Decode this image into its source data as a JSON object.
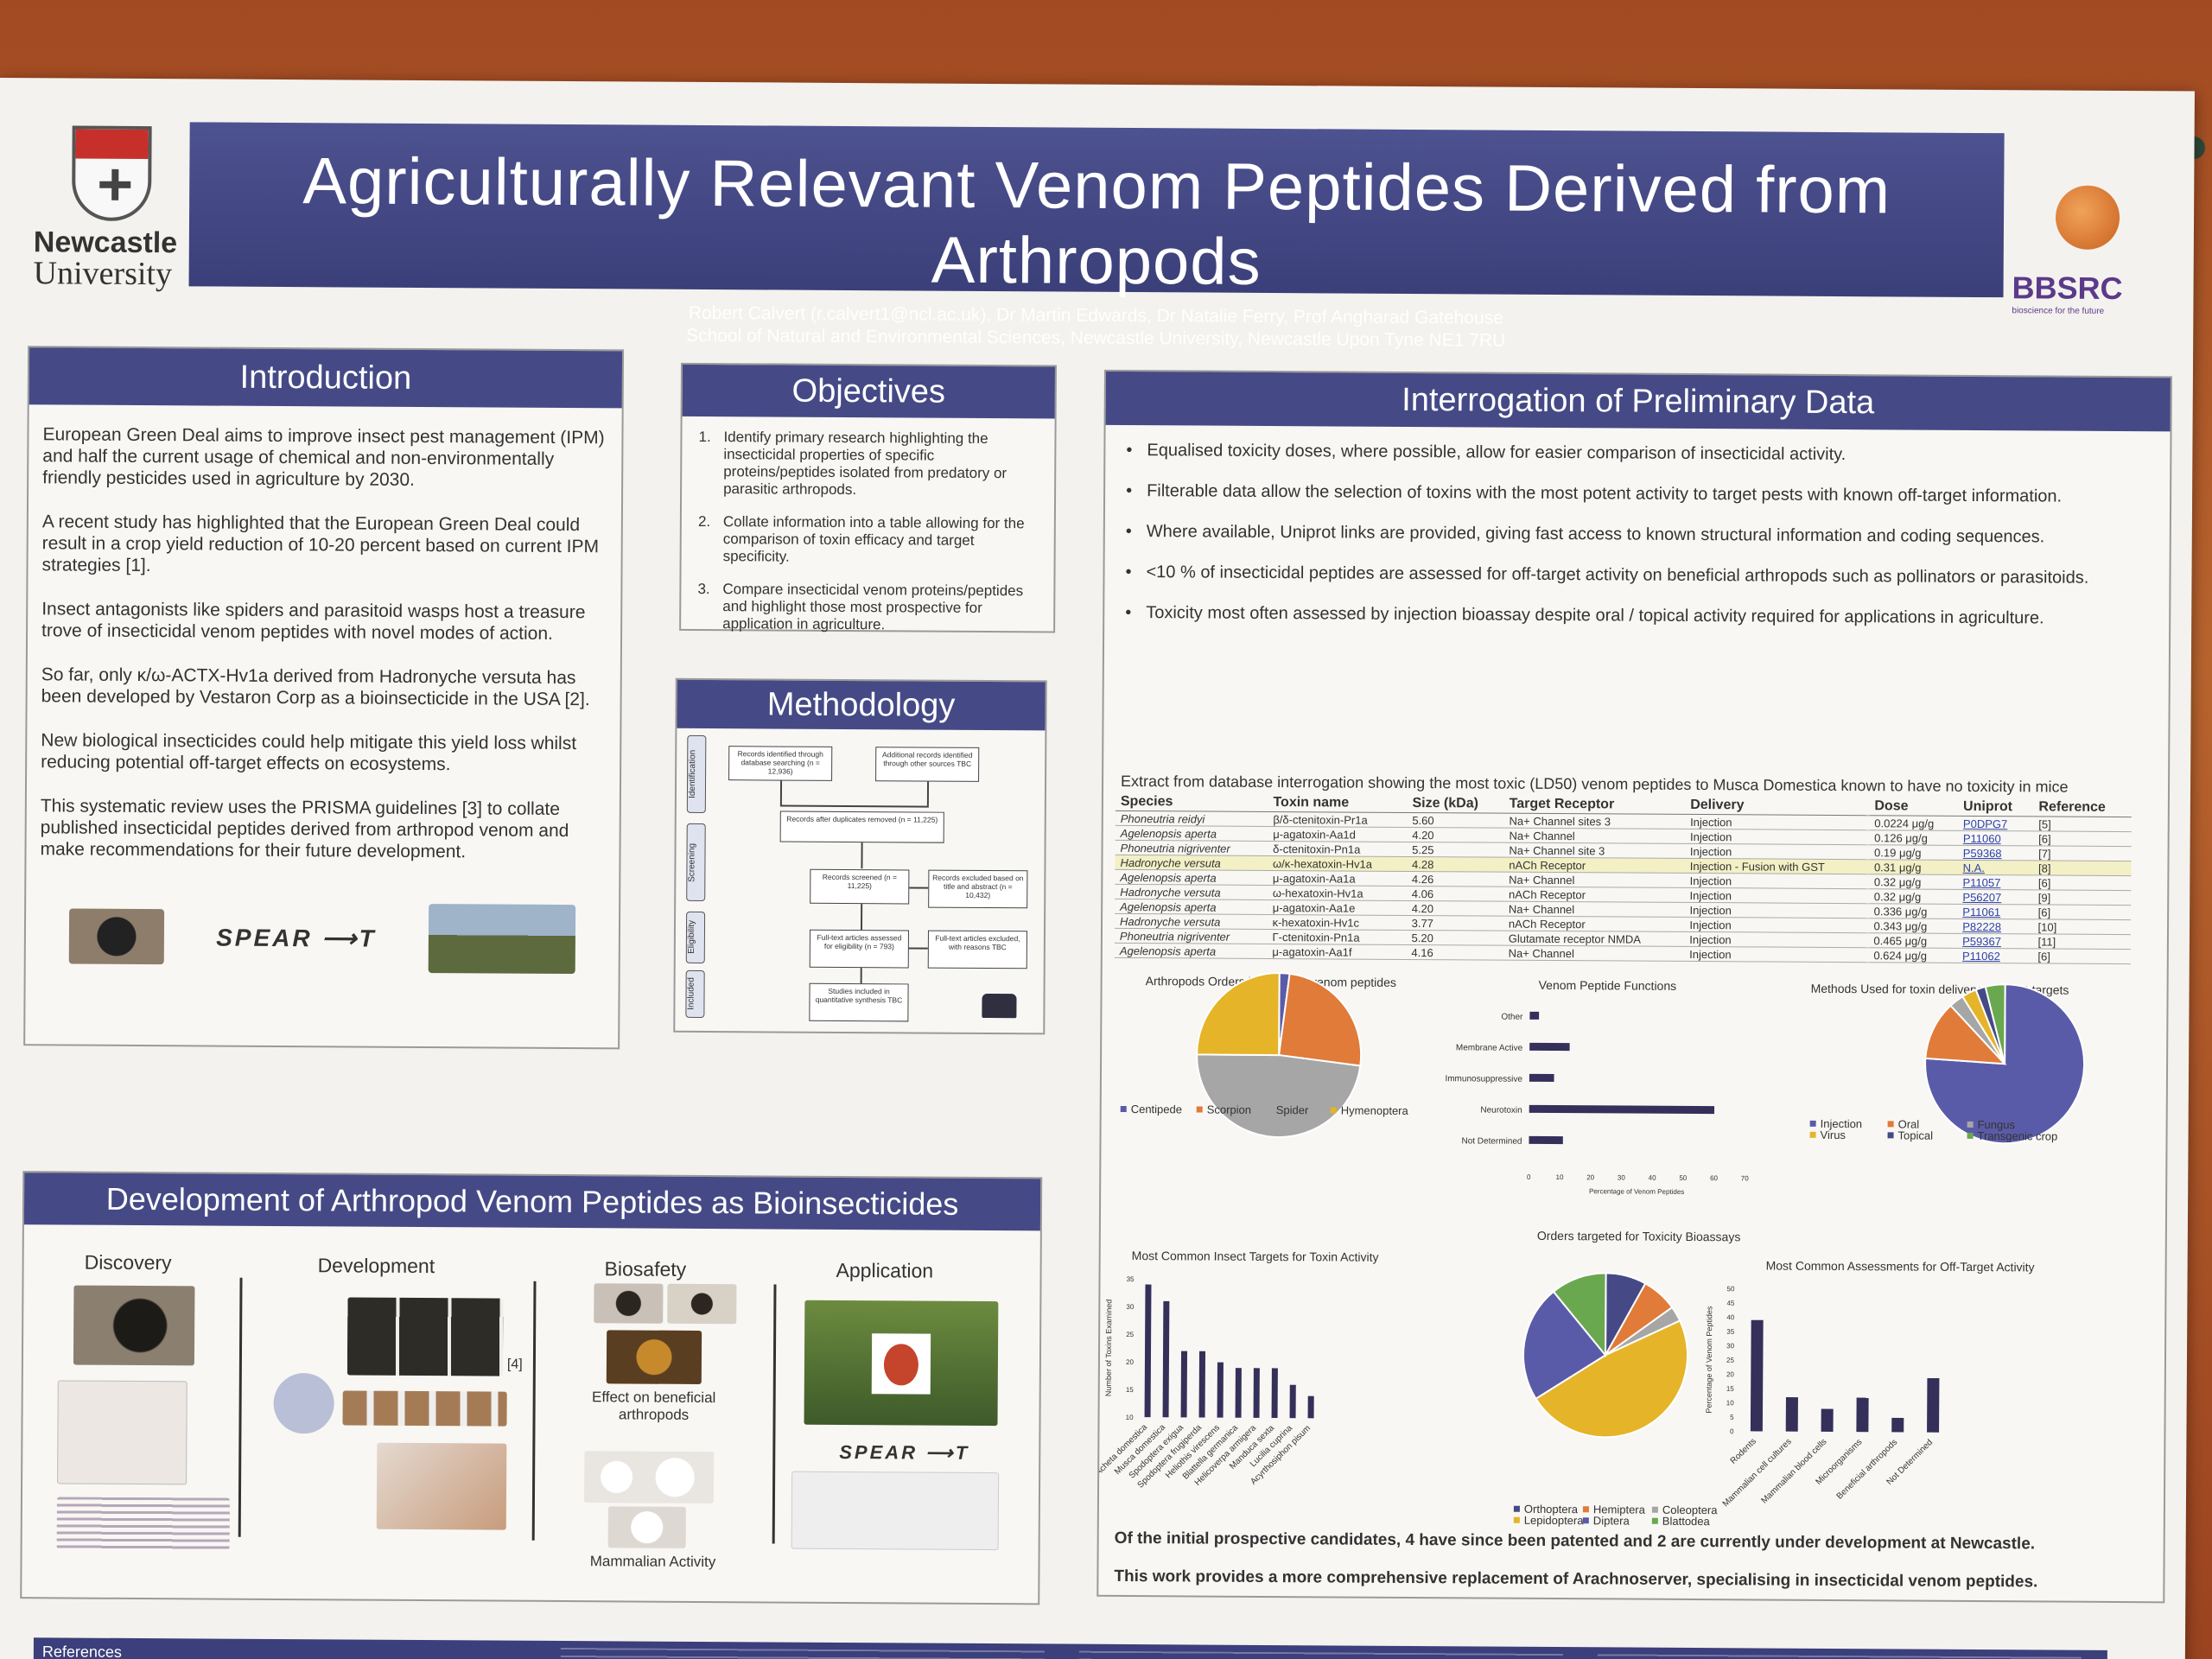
{
  "header": {
    "university_name": "Newcastle",
    "university_sub": "University",
    "title": "Agriculturally Relevant Venom Peptides Derived from Arthropods",
    "authors": "Robert Calvert (r.calvert1@ncl.ac.uk), Dr Martin Edwards, Dr Natalie Ferry, Prof Angharad Gatehouse",
    "affiliation": "School of Natural and Environmental Sciences, Newcastle University, Newcastle Upon Tyne NE1 7RU",
    "funder": "BBSRC",
    "funder_tagline": "bioscience for the future"
  },
  "introduction": {
    "heading": "Introduction",
    "paragraphs": [
      "European Green Deal aims to improve insect pest management (IPM) and half the current usage of chemical and non-environmentally friendly pesticides used in agriculture by 2030.",
      "A recent study has highlighted that the European Green Deal could result in a crop yield reduction of 10-20 percent based on current IPM strategies [1].",
      "Insect antagonists like spiders and parasitoid wasps host a treasure trove of insecticidal venom peptides with novel modes of action.",
      "So far, only κ/ω-ACTX-Hv1a derived from Hadronyche versuta has been developed by Vestaron Corp as a bioinsecticide in the USA [2].",
      "New biological insecticides could help mitigate this yield loss whilst reducing potential off-target effects on ecosystems.",
      "This systematic review uses the PRISMA guidelines [3] to collate published insecticidal peptides derived from arthropod venom and make recommendations for their future development."
    ],
    "logo_text": "SPEAR"
  },
  "objectives": {
    "heading": "Objectives",
    "items": [
      "Identify primary research highlighting the insecticidal properties of specific proteins/peptides isolated from predatory or parasitic arthropods.",
      "Collate information into a table allowing for the comparison of toxin efficacy and target specificity.",
      "Compare insecticidal venom proteins/peptides and highlight those most prospective for application in agriculture."
    ]
  },
  "methodology": {
    "heading": "Methodology",
    "stages": [
      "Identification",
      "Screening",
      "Eligibility",
      "Included"
    ],
    "boxes": {
      "db": "Records identified through database searching (n = 12,936)",
      "other": "Additional records identified through other sources TBC",
      "dedup": "Records after duplicates removed (n = 11,225)",
      "screened": "Records screened (n = 11,225)",
      "excluded": "Records excluded based on title and abstract (n = 10,432)",
      "fulltext": "Full-text articles assessed for eligibility (n = 793)",
      "ft_excluded": "Full-text articles excluded, with reasons TBC",
      "included": "Studies included in quantitative synthesis TBC"
    }
  },
  "interrogation": {
    "heading": "Interrogation of Preliminary Data",
    "bullets": [
      "Equalised toxicity doses, where possible, allow for easier comparison of insecticidal activity.",
      "Filterable data allow the selection of toxins with the most potent activity to target pests with known off-target information.",
      "Where available, Uniprot links are provided, giving fast access to known structural information and coding sequences.",
      "<10 % of insecticidal peptides are assessed for off-target activity on beneficial arthropods such as pollinators or parasitoids.",
      "Toxicity most often assessed by injection bioassay despite oral / topical activity required for applications in agriculture."
    ],
    "table_caption": "Extract from database interrogation showing the most toxic (LD50) venom peptides to Musca Domestica known to have no toxicity in mice",
    "table_headers": [
      "Species",
      "Toxin name",
      "Size (kDa)",
      "Target Receptor",
      "Delivery",
      "Dose",
      "Uniprot",
      "Reference"
    ],
    "table_rows": [
      [
        "Phoneutria reidyi",
        "β/δ-ctenitoxin-Pr1a",
        "5.60",
        "Na+ Channel sites 3",
        "Injection",
        "0.0224 μg/g",
        "P0DPG7",
        "[5]"
      ],
      [
        "Agelenopsis aperta",
        "μ-agatoxin-Aa1d",
        "4.20",
        "Na+ Channel",
        "Injection",
        "0.126 μg/g",
        "P11060",
        "[6]"
      ],
      [
        "Phoneutria nigriventer",
        "δ-ctenitoxin-Pn1a",
        "5.25",
        "Na+ Channel site 3",
        "Injection",
        "0.19 μg/g",
        "P59368",
        "[7]"
      ],
      [
        "Hadronyche versuta",
        "ω/κ-hexatoxin-Hv1a",
        "4.28",
        "nACh Receptor",
        "Injection - Fusion with GST",
        "0.31 μg/g",
        "N.A.",
        "[8]"
      ],
      [
        "Agelenopsis aperta",
        "μ-agatoxin-Aa1a",
        "4.26",
        "Na+ Channel",
        "Injection",
        "0.32 μg/g",
        "P11057",
        "[6]"
      ],
      [
        "Hadronyche versuta",
        "ω-hexatoxin-Hv1a",
        "4.06",
        "nACh Receptor",
        "Injection",
        "0.32 μg/g",
        "P56207",
        "[9]"
      ],
      [
        "Agelenopsis aperta",
        "μ-agatoxin-Aa1e",
        "4.20",
        "Na+ Channel",
        "Injection",
        "0.336 μg/g",
        "P11061",
        "[6]"
      ],
      [
        "Hadronyche versuta",
        "κ-hexatoxin-Hv1c",
        "3.77",
        "nACh Receptor",
        "Injection",
        "0.343 μg/g",
        "P82228",
        "[10]"
      ],
      [
        "Phoneutria nigriventer",
        "Γ-ctenitoxin-Pn1a",
        "5.20",
        "Glutamate receptor NMDA",
        "Injection",
        "0.465 μg/g",
        "P59367",
        "[11]"
      ],
      [
        "Agelenopsis aperta",
        "μ-agatoxin-Aa1f",
        "4.16",
        "Na+ Channel",
        "Injection",
        "0.624 μg/g",
        "P11062",
        "[6]"
      ]
    ],
    "conclusion_1": "Of the initial prospective candidates, 4 have since been patented and 2 are currently under development at Newcastle.",
    "conclusion_2": "This work provides a more comprehensive replacement of Arachnoserver, specialising in insecticidal venom peptides."
  },
  "colors": {
    "navy": "#454a86",
    "orange": "#e07b39",
    "grey": "#a6a6a6",
    "gold": "#e5b428",
    "purple": "#5a5ba8",
    "green": "#6aa84f",
    "dark_bar": "#34305a"
  },
  "chart_data": [
    {
      "type": "pie",
      "title": "Arthropods Orders insecticidal venom peptides",
      "categories": [
        "Centipede",
        "Scorpion",
        "Spider",
        "Hymenoptera"
      ],
      "values": [
        2,
        25,
        48,
        25
      ]
    },
    {
      "type": "bar",
      "orientation": "horizontal",
      "title": "Venom Peptide Functions",
      "xlabel": "Percentage of Venom Peptides",
      "categories": [
        "Other",
        "Membrane Active",
        "Immunosuppressive",
        "Neurotoxin",
        "Not Determined"
      ],
      "values": [
        3,
        13,
        8,
        60,
        11
      ],
      "xlim": [
        0,
        70
      ],
      "xticks": [
        0,
        10,
        20,
        30,
        40,
        50,
        60,
        70
      ]
    },
    {
      "type": "pie",
      "title": "Methods Used for toxin delivery to insect targets",
      "categories": [
        "Injection",
        "Oral",
        "Fungus",
        "Virus",
        "Topical",
        "Transgenic crop"
      ],
      "values": [
        76,
        12,
        3,
        3,
        2,
        4
      ]
    },
    {
      "type": "bar",
      "title": "Most Common Insect Targets for Toxin Activity",
      "ylabel": "Number of Toxins Examined",
      "categories": [
        "Acheta domestica",
        "Musca domestica",
        "Spodoptera exigua",
        "Spodoptera frugiperda",
        "Heliothis virescens",
        "Blattella germanica",
        "Helicoverpa armigera",
        "Manduca sexta",
        "Lucilia cuprina",
        "Acyrthosiphon pisum"
      ],
      "values": [
        34,
        31,
        22,
        22,
        20,
        19,
        19,
        19,
        16,
        14
      ],
      "ylim": [
        10,
        35
      ],
      "yticks": [
        10,
        15,
        20,
        25,
        30,
        35
      ]
    },
    {
      "type": "pie",
      "title": "Orders targeted for Toxicity Bioassays",
      "categories": [
        "Orthoptera",
        "Hemiptera",
        "Coleoptera",
        "Lepidoptera",
        "Diptera",
        "Blattodea"
      ],
      "values": [
        8,
        7,
        3,
        48,
        23,
        11
      ]
    },
    {
      "type": "bar",
      "title": "Most Common Assessments for Off-Target Activity",
      "ylabel": "Percentage of Venom Peptides",
      "categories": [
        "Rodents",
        "Mammalian cell cultures",
        "Mammalian blood cells",
        "Microorganisms",
        "Beneficial arthropods",
        "Not Determined"
      ],
      "values": [
        39,
        12,
        8,
        12,
        5,
        19
      ],
      "ylim": [
        0,
        50
      ],
      "yticks": [
        0,
        5,
        10,
        15,
        20,
        25,
        30,
        35,
        40,
        45,
        50
      ]
    }
  ],
  "development": {
    "heading": "Development of Arthropod Venom Peptides as Bioinsecticides",
    "columns": [
      "Discovery",
      "Development",
      "Biosafety",
      "Application"
    ],
    "biosafety_caption_1": "Effect on beneficial arthropods",
    "biosafety_caption_2": "Mammalian Activity",
    "figure_ref": "[4]",
    "logo_text": "SPEAR"
  },
  "references": {
    "heading": "References"
  }
}
